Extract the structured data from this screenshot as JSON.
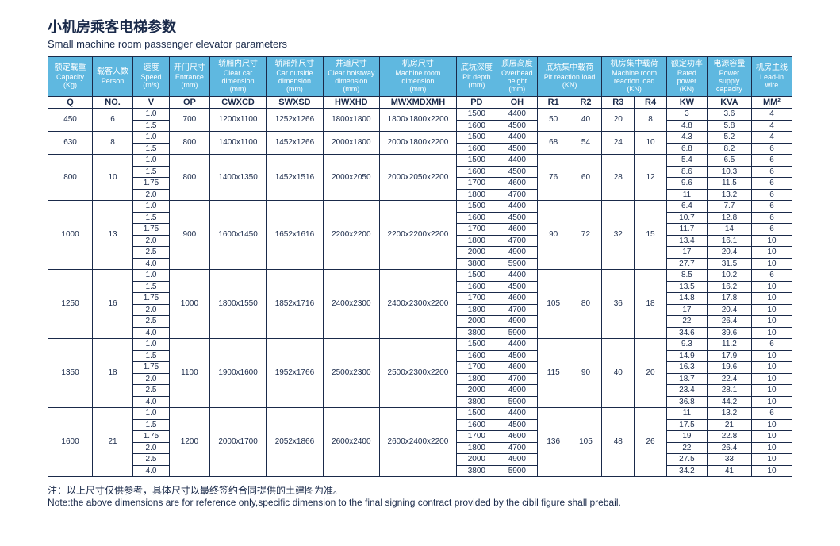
{
  "title_cn": "小机房乘客电梯参数",
  "title_en": "Small machine room passenger elevator parameters",
  "headers": [
    {
      "cn": "额定载重",
      "en": "Capacity",
      "unit": "(Kg)",
      "code": "Q"
    },
    {
      "cn": "载客人数",
      "en": "Person",
      "unit": "",
      "code": "NO."
    },
    {
      "cn": "速度",
      "en": "Speed",
      "unit": "(m/s)",
      "code": "V"
    },
    {
      "cn": "开门尺寸",
      "en": "Entrance",
      "unit": "(mm)",
      "code": "OP"
    },
    {
      "cn": "轿厢内尺寸",
      "en": "Clear car dimension",
      "unit": "(mm)",
      "code": "CWXCD"
    },
    {
      "cn": "轿厢外尺寸",
      "en": "Car outside dimension",
      "unit": "(mm)",
      "code": "SWXSD"
    },
    {
      "cn": "井道尺寸",
      "en": "Clear hoistway dimension",
      "unit": "(mm)",
      "code": "HWXHD"
    },
    {
      "cn": "机房尺寸",
      "en": "Machine room dimension",
      "unit": "(mm)",
      "code": "MWXMDXMH"
    },
    {
      "cn": "底坑深度",
      "en": "Pit depth",
      "unit": "(mm)",
      "code": "PD"
    },
    {
      "cn": "顶层高度",
      "en": "Overhead height",
      "unit": "(mm)",
      "code": "OH"
    },
    {
      "cn": "底坑集中载荷",
      "en": "Pit reaction load",
      "unit": "(KN)",
      "code": "R1"
    },
    {
      "cn": "",
      "en": "",
      "unit": "",
      "code": "R2"
    },
    {
      "cn": "机房集中载荷",
      "en": "Machine room reaction load",
      "unit": "(KN)",
      "code": "R3"
    },
    {
      "cn": "",
      "en": "",
      "unit": "",
      "code": "R4"
    },
    {
      "cn": "额定功率",
      "en": "Rated power",
      "unit": "(KN)",
      "code": "KW"
    },
    {
      "cn": "电源容量",
      "en": "Power supply capacity",
      "unit": "",
      "code": "KVA"
    },
    {
      "cn": "机房主线",
      "en": "Lead-in wire",
      "unit": "",
      "code": "MM²"
    }
  ],
  "groups": [
    {
      "cap": "450",
      "person": "6",
      "op": "700",
      "cw": "1200x1100",
      "sw": "1252x1266",
      "hw": "1800x1800",
      "mw": "1800x1800x2200",
      "r1": "50",
      "r2": "40",
      "r3": "20",
      "r4": "8",
      "rows": [
        {
          "v": "1.0",
          "pd": "1500",
          "oh": "4400",
          "kw": "3",
          "kva": "3.6",
          "mm": "4"
        },
        {
          "v": "1.5",
          "pd": "1600",
          "oh": "4500",
          "kw": "4.8",
          "kva": "5.8",
          "mm": "4"
        }
      ]
    },
    {
      "cap": "630",
      "person": "8",
      "op": "800",
      "cw": "1400x1100",
      "sw": "1452x1266",
      "hw": "2000x1800",
      "mw": "2000x1800x2200",
      "r1": "68",
      "r2": "54",
      "r3": "24",
      "r4": "10",
      "rows": [
        {
          "v": "1.0",
          "pd": "1500",
          "oh": "4400",
          "kw": "4.3",
          "kva": "5.2",
          "mm": "4"
        },
        {
          "v": "1.5",
          "pd": "1600",
          "oh": "4500",
          "kw": "6.8",
          "kva": "8.2",
          "mm": "6"
        }
      ]
    },
    {
      "cap": "800",
      "person": "10",
      "op": "800",
      "cw": "1400x1350",
      "sw": "1452x1516",
      "hw": "2000x2050",
      "mw": "2000x2050x2200",
      "r1": "76",
      "r2": "60",
      "r3": "28",
      "r4": "12",
      "rows": [
        {
          "v": "1.0",
          "pd": "1500",
          "oh": "4400",
          "kw": "5.4",
          "kva": "6.5",
          "mm": "6"
        },
        {
          "v": "1.5",
          "pd": "1600",
          "oh": "4500",
          "kw": "8.6",
          "kva": "10.3",
          "mm": "6"
        },
        {
          "v": "1.75",
          "pd": "1700",
          "oh": "4600",
          "kw": "9.6",
          "kva": "11.5",
          "mm": "6"
        },
        {
          "v": "2.0",
          "pd": "1800",
          "oh": "4700",
          "kw": "11",
          "kva": "13.2",
          "mm": "6"
        }
      ]
    },
    {
      "cap": "1000",
      "person": "13",
      "op": "900",
      "cw": "1600x1450",
      "sw": "1652x1616",
      "hw": "2200x2200",
      "mw": "2200x2200x2200",
      "r1": "90",
      "r2": "72",
      "r3": "32",
      "r4": "15",
      "rows": [
        {
          "v": "1.0",
          "pd": "1500",
          "oh": "4400",
          "kw": "6.4",
          "kva": "7.7",
          "mm": "6"
        },
        {
          "v": "1.5",
          "pd": "1600",
          "oh": "4500",
          "kw": "10.7",
          "kva": "12.8",
          "mm": "6"
        },
        {
          "v": "1.75",
          "pd": "1700",
          "oh": "4600",
          "kw": "11.7",
          "kva": "14",
          "mm": "6"
        },
        {
          "v": "2.0",
          "pd": "1800",
          "oh": "4700",
          "kw": "13.4",
          "kva": "16.1",
          "mm": "10"
        },
        {
          "v": "2.5",
          "pd": "2000",
          "oh": "4900",
          "kw": "17",
          "kva": "20.4",
          "mm": "10"
        },
        {
          "v": "4.0",
          "pd": "3800",
          "oh": "5900",
          "kw": "27.7",
          "kva": "31.5",
          "mm": "10"
        }
      ]
    },
    {
      "cap": "1250",
      "person": "16",
      "op": "1000",
      "cw": "1800x1550",
      "sw": "1852x1716",
      "hw": "2400x2300",
      "mw": "2400x2300x2200",
      "r1": "105",
      "r2": "80",
      "r3": "36",
      "r4": "18",
      "rows": [
        {
          "v": "1.0",
          "pd": "1500",
          "oh": "4400",
          "kw": "8.5",
          "kva": "10.2",
          "mm": "6"
        },
        {
          "v": "1.5",
          "pd": "1600",
          "oh": "4500",
          "kw": "13.5",
          "kva": "16.2",
          "mm": "10"
        },
        {
          "v": "1.75",
          "pd": "1700",
          "oh": "4600",
          "kw": "14.8",
          "kva": "17.8",
          "mm": "10"
        },
        {
          "v": "2.0",
          "pd": "1800",
          "oh": "4700",
          "kw": "17",
          "kva": "20.4",
          "mm": "10"
        },
        {
          "v": "2.5",
          "pd": "2000",
          "oh": "4900",
          "kw": "22",
          "kva": "26.4",
          "mm": "10"
        },
        {
          "v": "4.0",
          "pd": "3800",
          "oh": "5900",
          "kw": "34.6",
          "kva": "39.6",
          "mm": "10"
        }
      ]
    },
    {
      "cap": "1350",
      "person": "18",
      "op": "1100",
      "cw": "1900x1600",
      "sw": "1952x1766",
      "hw": "2500x2300",
      "mw": "2500x2300x2200",
      "r1": "115",
      "r2": "90",
      "r3": "40",
      "r4": "20",
      "rows": [
        {
          "v": "1.0",
          "pd": "1500",
          "oh": "4400",
          "kw": "9.3",
          "kva": "11.2",
          "mm": "6"
        },
        {
          "v": "1.5",
          "pd": "1600",
          "oh": "4500",
          "kw": "14.9",
          "kva": "17.9",
          "mm": "10"
        },
        {
          "v": "1.75",
          "pd": "1700",
          "oh": "4600",
          "kw": "16.3",
          "kva": "19.6",
          "mm": "10"
        },
        {
          "v": "2.0",
          "pd": "1800",
          "oh": "4700",
          "kw": "18.7",
          "kva": "22.4",
          "mm": "10"
        },
        {
          "v": "2.5",
          "pd": "2000",
          "oh": "4900",
          "kw": "23.4",
          "kva": "28.1",
          "mm": "10"
        },
        {
          "v": "4.0",
          "pd": "3800",
          "oh": "5900",
          "kw": "36.8",
          "kva": "44.2",
          "mm": "10"
        }
      ]
    },
    {
      "cap": "1600",
      "person": "21",
      "op": "1200",
      "cw": "2000x1700",
      "sw": "2052x1866",
      "hw": "2600x2400",
      "mw": "2600x2400x2200",
      "r1": "136",
      "r2": "105",
      "r3": "48",
      "r4": "26",
      "rows": [
        {
          "v": "1.0",
          "pd": "1500",
          "oh": "4400",
          "kw": "11",
          "kva": "13.2",
          "mm": "6"
        },
        {
          "v": "1.5",
          "pd": "1600",
          "oh": "4500",
          "kw": "17.5",
          "kva": "21",
          "mm": "10"
        },
        {
          "v": "1.75",
          "pd": "1700",
          "oh": "4600",
          "kw": "19",
          "kva": "22.8",
          "mm": "10"
        },
        {
          "v": "2.0",
          "pd": "1800",
          "oh": "4700",
          "kw": "22",
          "kva": "26.4",
          "mm": "10"
        },
        {
          "v": "2.5",
          "pd": "2000",
          "oh": "4900",
          "kw": "27.5",
          "kva": "33",
          "mm": "10"
        },
        {
          "v": "4.0",
          "pd": "3800",
          "oh": "5900",
          "kw": "34.2",
          "kva": "41",
          "mm": "10"
        }
      ]
    }
  ],
  "note_cn": "注：以上尺寸仅供参考，具体尺寸以最终签约合同提供的土建图为准。",
  "note_en": "Note:the above dimensions are for reference only,specific dimension to the final signing contract provided by the cibil figure shall prebail."
}
